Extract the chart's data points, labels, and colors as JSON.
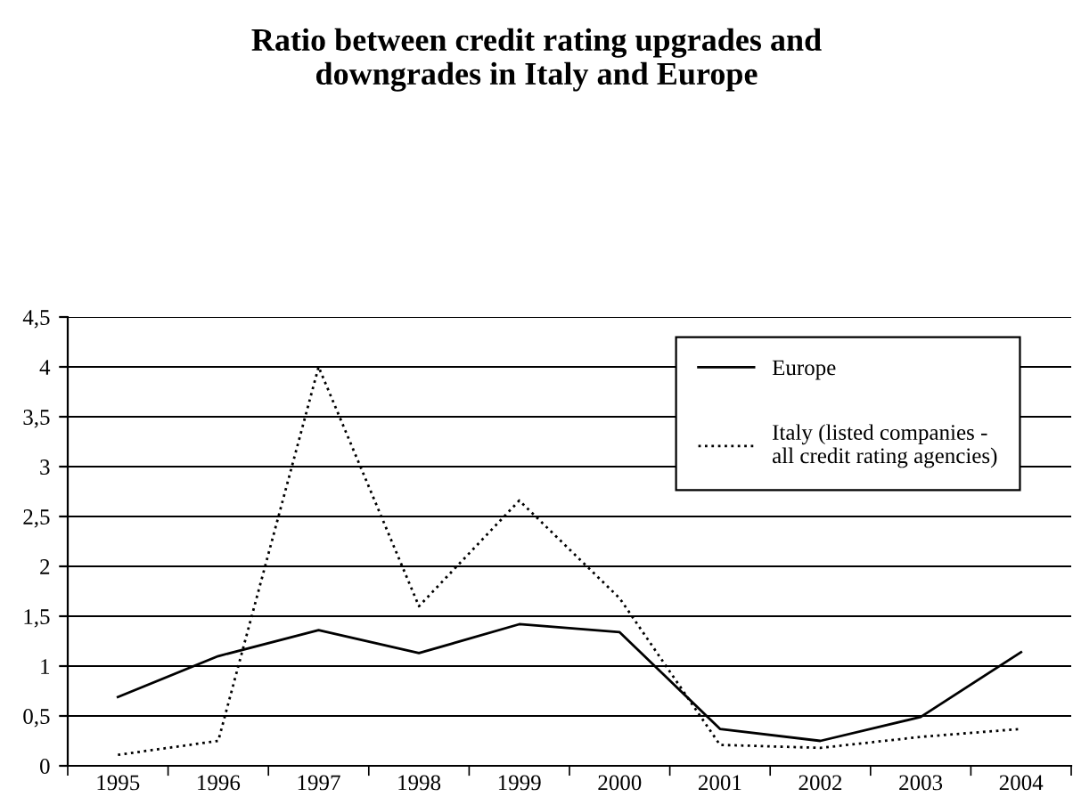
{
  "chart_data": {
    "type": "line",
    "title": "Ratio between credit rating upgrades and\ndowngrades in Italy and Europe",
    "categories": [
      "1995",
      "1996",
      "1997",
      "1998",
      "1999",
      "2000",
      "2001",
      "2002",
      "2003",
      "2004"
    ],
    "series": [
      {
        "name": "Europe",
        "color": "#000000",
        "line_style": "solid",
        "values": [
          0.69,
          1.1,
          1.36,
          1.13,
          1.42,
          1.34,
          0.37,
          0.25,
          0.49,
          1.14
        ]
      },
      {
        "name": "Italy (listed companies -\nall credit rating agencies)",
        "color": "#000000",
        "line_style": "dotted",
        "values": [
          0.11,
          0.25,
          4.0,
          1.6,
          2.66,
          1.68,
          0.21,
          0.18,
          0.29,
          0.37
        ]
      }
    ],
    "ylim": [
      0,
      4.5
    ],
    "yticks": [
      0,
      {
        "value": 0.5,
        "label": "0,5"
      },
      1,
      {
        "value": 1.5,
        "label": "1,5"
      },
      2,
      {
        "value": 2.5,
        "label": "2,5"
      },
      3,
      {
        "value": 3.5,
        "label": "3,5"
      },
      4,
      {
        "value": 4.5,
        "label": "4,5"
      }
    ],
    "grid": "y",
    "legend": "top right",
    "marker": "none"
  }
}
